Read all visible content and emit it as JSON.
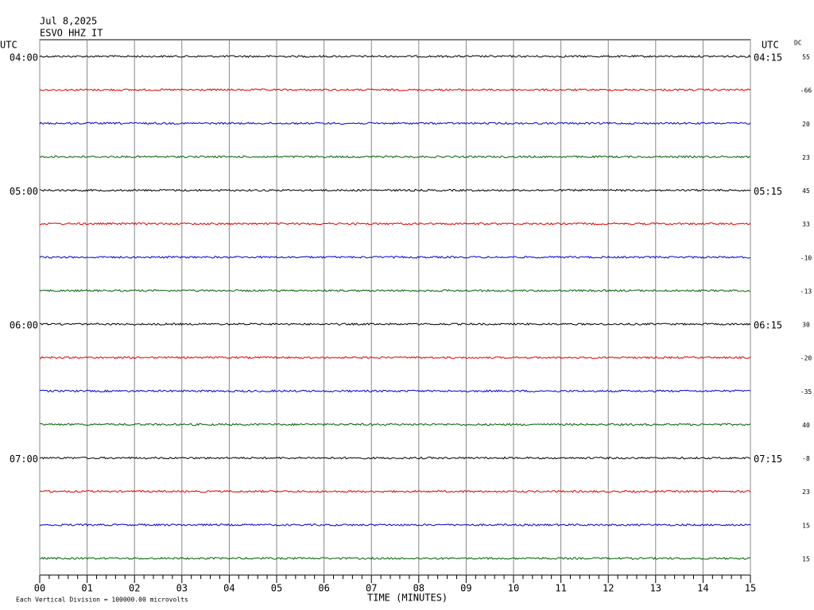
{
  "header": {
    "date": "Jul 8,2025",
    "station": "ESVO HHZ IT"
  },
  "left_axis": {
    "title": "UTC",
    "labels": [
      "04:00",
      null,
      null,
      null,
      "05:00",
      null,
      null,
      null,
      "06:00",
      null,
      null,
      null,
      "07:00",
      null,
      null,
      null
    ]
  },
  "right_axis": {
    "title": "UTC",
    "labels": [
      "04:15",
      null,
      null,
      null,
      "05:15",
      null,
      null,
      null,
      "06:15",
      null,
      null,
      null,
      "07:15",
      null,
      null,
      null
    ]
  },
  "dc": {
    "title": "DC",
    "values": [
      55,
      -66,
      20,
      23,
      45,
      33,
      -10,
      -13,
      30,
      -20,
      -35,
      40,
      -8,
      23,
      15,
      15
    ]
  },
  "x_axis": {
    "title": "TIME (MINUTES)",
    "labels": [
      "00",
      "01",
      "02",
      "03",
      "04",
      "05",
      "06",
      "07",
      "08",
      "09",
      "10",
      "11",
      "12",
      "13",
      "14",
      "15"
    ]
  },
  "footer": "Each Vertical Division = 100000.00 microvolts",
  "trace_colors": [
    "#000000",
    "#e00000",
    "#0000d0",
    "#006000"
  ]
}
